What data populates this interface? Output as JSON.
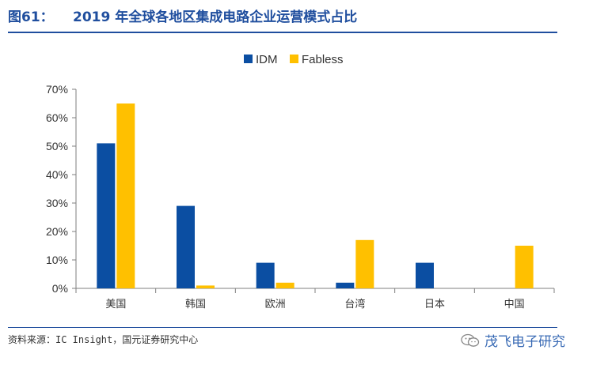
{
  "figure": {
    "number": "图61：",
    "title": "2019 年全球各地区集成电路企业运营模式占比",
    "source": "资料来源：IC Insight，国元证券研究中心",
    "watermark": "茂飞电子研究",
    "watermark_icon": "wechat-icon"
  },
  "colors": {
    "accent": "#1f4e9e",
    "IDM": "#0b4ea2",
    "Fabless": "#ffc000",
    "axis": "#7f7f7f",
    "text": "#333333"
  },
  "chart_data": {
    "type": "bar",
    "title": "",
    "categories": [
      "美国",
      "韩国",
      "欧洲",
      "台湾",
      "日本",
      "中国"
    ],
    "series": [
      {
        "name": "IDM",
        "values": [
          51,
          29,
          9,
          2,
          9,
          0
        ]
      },
      {
        "name": "Fabless",
        "values": [
          65,
          1,
          2,
          17,
          0,
          15
        ]
      }
    ],
    "yticks": [
      "0%",
      "10%",
      "20%",
      "30%",
      "40%",
      "50%",
      "60%",
      "70%"
    ],
    "ylim": [
      0,
      70
    ],
    "unit": "%",
    "legend": "top-center",
    "grid": false
  }
}
